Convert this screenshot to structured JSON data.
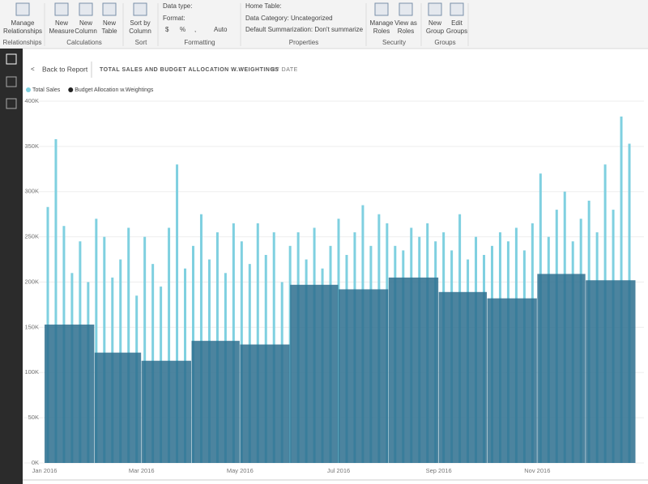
{
  "ribbon": {
    "groups": [
      {
        "label": "Relationships",
        "buttons": [
          [
            "Manage",
            "Relationships"
          ]
        ]
      },
      {
        "label": "Calculations",
        "buttons": [
          [
            "New",
            "Measure"
          ],
          [
            "New",
            "Column"
          ],
          [
            "New",
            "Table"
          ]
        ]
      },
      {
        "label": "Sort",
        "buttons": [
          [
            "Sort by",
            "Column"
          ]
        ]
      },
      {
        "label": "Formatting",
        "fields": [
          "Data type:",
          "Format:",
          "$",
          "%",
          ",",
          "Auto"
        ]
      },
      {
        "label": "Properties",
        "fields": [
          "Home Table:",
          "Data Category: Uncategorized",
          "Default Summarization: Don't summarize"
        ]
      },
      {
        "label": "Security",
        "buttons": [
          [
            "Manage",
            "Roles"
          ],
          [
            "View as",
            "Roles"
          ]
        ]
      },
      {
        "label": "Groups",
        "buttons": [
          [
            "New",
            "Group"
          ],
          [
            "Edit",
            "Groups"
          ]
        ]
      }
    ]
  },
  "header": {
    "back": "Back to Report",
    "title": "TOTAL SALES AND BUDGET ALLOCATION W.WEIGHTINGS",
    "subtitle": "BY DATE"
  },
  "chart_data": {
    "type": "bar",
    "xlim": [
      0,
      366
    ],
    "xticks": [
      {
        "value": 0,
        "label": "Jan 2016"
      },
      {
        "value": 60,
        "label": "Mar 2016"
      },
      {
        "value": 121,
        "label": "May 2016"
      },
      {
        "value": 182,
        "label": "Jul 2016"
      },
      {
        "value": 244,
        "label": "Sep 2016"
      },
      {
        "value": 305,
        "label": "Nov 2016"
      }
    ],
    "ylim": [
      0,
      400000
    ],
    "yticks": [
      {
        "value": 0,
        "label": "0K"
      },
      {
        "value": 50000,
        "label": "50K"
      },
      {
        "value": 100000,
        "label": "100K"
      },
      {
        "value": 150000,
        "label": "150K"
      },
      {
        "value": 200000,
        "label": "200K"
      },
      {
        "value": 250000,
        "label": "250K"
      },
      {
        "value": 300000,
        "label": "300K"
      },
      {
        "value": 350000,
        "label": "350K"
      },
      {
        "value": 400000,
        "label": "400K"
      }
    ],
    "grid": true,
    "legend": "top-left",
    "series": [
      {
        "name": "Total Sales",
        "color": "#7fd0e0",
        "x": [
          2,
          7,
          12,
          17,
          22,
          27,
          32,
          37,
          42,
          47,
          52,
          57,
          62,
          67,
          72,
          77,
          82,
          87,
          92,
          97,
          102,
          107,
          112,
          117,
          122,
          127,
          132,
          137,
          142,
          147,
          152,
          157,
          162,
          167,
          172,
          177,
          182,
          187,
          192,
          197,
          202,
          207,
          212,
          217,
          222,
          227,
          232,
          237,
          242,
          247,
          252,
          257,
          262,
          267,
          272,
          277,
          282,
          287,
          292,
          297,
          302,
          307,
          312,
          317,
          322,
          327,
          332,
          337,
          342,
          347,
          352,
          357,
          362
        ],
        "values": [
          283000,
          358000,
          262000,
          210000,
          245000,
          200000,
          270000,
          250000,
          205000,
          225000,
          260000,
          185000,
          250000,
          220000,
          195000,
          260000,
          330000,
          215000,
          240000,
          275000,
          225000,
          255000,
          210000,
          265000,
          245000,
          220000,
          265000,
          230000,
          255000,
          200000,
          240000,
          255000,
          225000,
          260000,
          215000,
          240000,
          270000,
          230000,
          255000,
          285000,
          240000,
          275000,
          265000,
          240000,
          235000,
          260000,
          250000,
          265000,
          245000,
          255000,
          235000,
          275000,
          225000,
          250000,
          230000,
          240000,
          255000,
          245000,
          260000,
          235000,
          265000,
          320000,
          250000,
          280000,
          300000,
          245000,
          270000,
          290000,
          255000,
          330000,
          280000,
          383000,
          353000
        ]
      },
      {
        "name": "Budget Allocation w.Weightings",
        "color": "#2d6f8e",
        "bins": [
          0,
          31,
          60,
          91,
          121,
          152,
          182,
          213,
          244,
          274,
          305,
          335,
          366
        ],
        "values": [
          153000,
          122000,
          113000,
          135000,
          131000,
          197000,
          192000,
          205000,
          189000,
          182000,
          209000,
          202000
        ]
      }
    ]
  }
}
